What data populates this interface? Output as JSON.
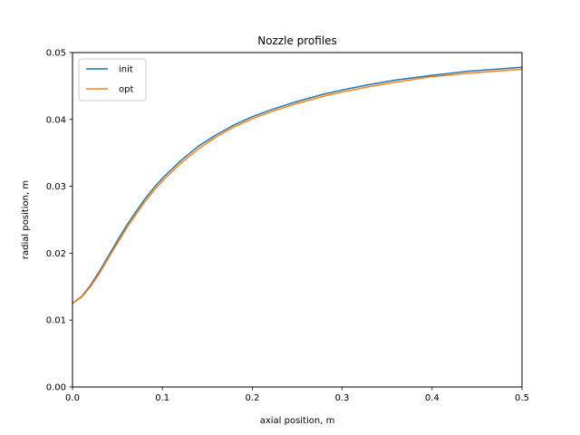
{
  "chart_data": {
    "type": "line",
    "title": "Nozzle profiles",
    "xlabel": "axial position, m",
    "ylabel": "radial position, m",
    "xlim": [
      0,
      0.5
    ],
    "ylim": [
      0,
      0.05
    ],
    "xticks": [
      "0.0",
      "0.1",
      "0.2",
      "0.3",
      "0.4",
      "0.5"
    ],
    "yticks": [
      "0.00",
      "0.01",
      "0.02",
      "0.03",
      "0.04",
      "0.05"
    ],
    "grid": false,
    "legend_position": "top-left",
    "x": [
      0.0,
      0.01,
      0.02,
      0.03,
      0.04,
      0.05,
      0.06,
      0.07,
      0.08,
      0.09,
      0.1,
      0.12,
      0.14,
      0.16,
      0.18,
      0.2,
      0.22,
      0.25,
      0.28,
      0.3,
      0.33,
      0.36,
      0.4,
      0.44,
      0.48,
      0.5
    ],
    "series": [
      {
        "name": "init",
        "color": "#1f77b4",
        "values": [
          0.0125,
          0.0135,
          0.0152,
          0.0173,
          0.0196,
          0.0219,
          0.0241,
          0.0261,
          0.028,
          0.0297,
          0.0312,
          0.0338,
          0.036,
          0.0377,
          0.0392,
          0.0404,
          0.0414,
          0.0427,
          0.0438,
          0.0444,
          0.0452,
          0.0459,
          0.0466,
          0.0472,
          0.0476,
          0.0478
        ]
      },
      {
        "name": "opt",
        "color": "#ff7f0e",
        "values": [
          0.0125,
          0.0134,
          0.015,
          0.017,
          0.0193,
          0.0215,
          0.0237,
          0.0257,
          0.0276,
          0.0293,
          0.0308,
          0.0334,
          0.0356,
          0.0374,
          0.0389,
          0.0401,
          0.0411,
          0.0424,
          0.0435,
          0.0441,
          0.0449,
          0.0456,
          0.0464,
          0.0469,
          0.0473,
          0.0475
        ]
      }
    ]
  }
}
